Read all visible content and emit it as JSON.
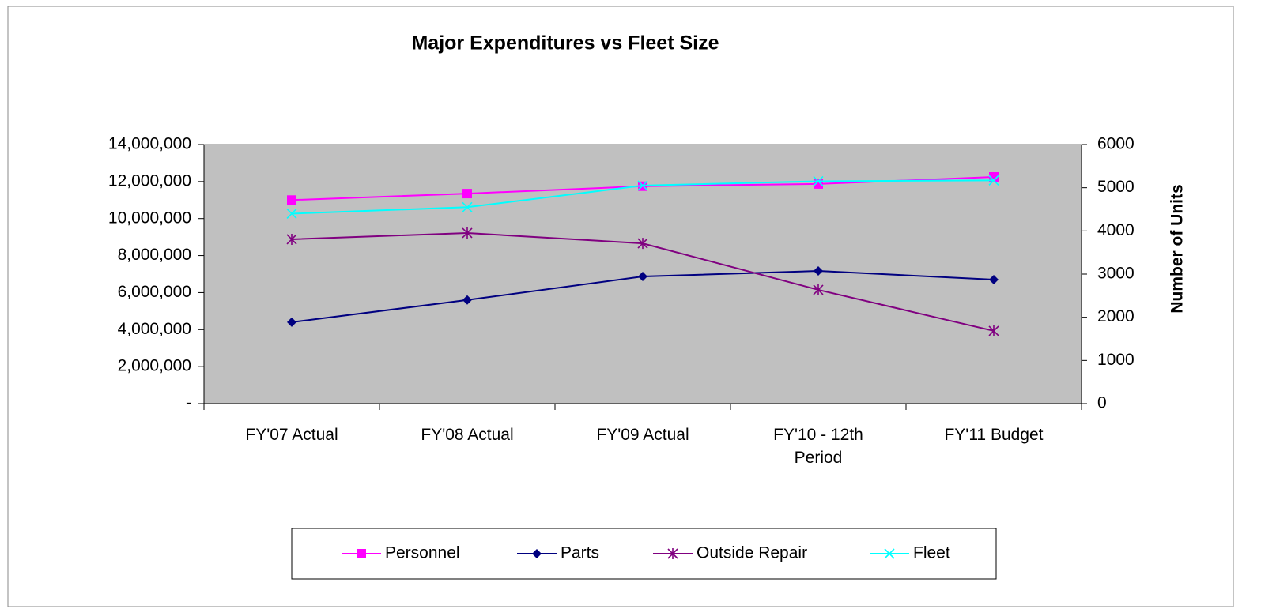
{
  "chart_data": {
    "type": "line",
    "title": "Major Expenditures vs Fleet Size",
    "categories": [
      "FY'07 Actual",
      "FY'08 Actual",
      "FY'09 Actual",
      "FY'10 - 12th Period",
      "FY'11 Budget"
    ],
    "ylim": [
      0,
      14000000
    ],
    "yticks": [
      {
        "value": 0,
        "label": "-"
      },
      {
        "value": 2000000,
        "label": "2,000,000"
      },
      {
        "value": 4000000,
        "label": "4,000,000"
      },
      {
        "value": 6000000,
        "label": "6,000,000"
      },
      {
        "value": 8000000,
        "label": "8,000,000"
      },
      {
        "value": 10000000,
        "label": "10,000,000"
      },
      {
        "value": 12000000,
        "label": "12,000,000"
      },
      {
        "value": 14000000,
        "label": "14,000,000"
      }
    ],
    "y2lim": [
      0,
      6000
    ],
    "y2ticks": [
      0,
      1000,
      2000,
      3000,
      4000,
      5000,
      6000
    ],
    "y2label": "Number of Units",
    "series": [
      {
        "name": "Personnel",
        "color": "#ff00ff",
        "marker": "square",
        "values": [
          11000000,
          11350000,
          11750000,
          11870000,
          12250000
        ]
      },
      {
        "name": "Parts",
        "color": "#000080",
        "marker": "diamond",
        "values": [
          4400000,
          5600000,
          6870000,
          7170000,
          6700000
        ]
      },
      {
        "name": "Outside Repair",
        "color": "#800080",
        "marker": "star",
        "values": [
          8880000,
          9220000,
          8660000,
          6150000,
          3930000
        ]
      },
      {
        "name": "Fleet",
        "color": "#00ffff",
        "marker": "x",
        "axis": "y2",
        "values": [
          4400,
          4550,
          5050,
          5150,
          5170
        ]
      }
    ],
    "plot_background": "#c0c0c0"
  }
}
